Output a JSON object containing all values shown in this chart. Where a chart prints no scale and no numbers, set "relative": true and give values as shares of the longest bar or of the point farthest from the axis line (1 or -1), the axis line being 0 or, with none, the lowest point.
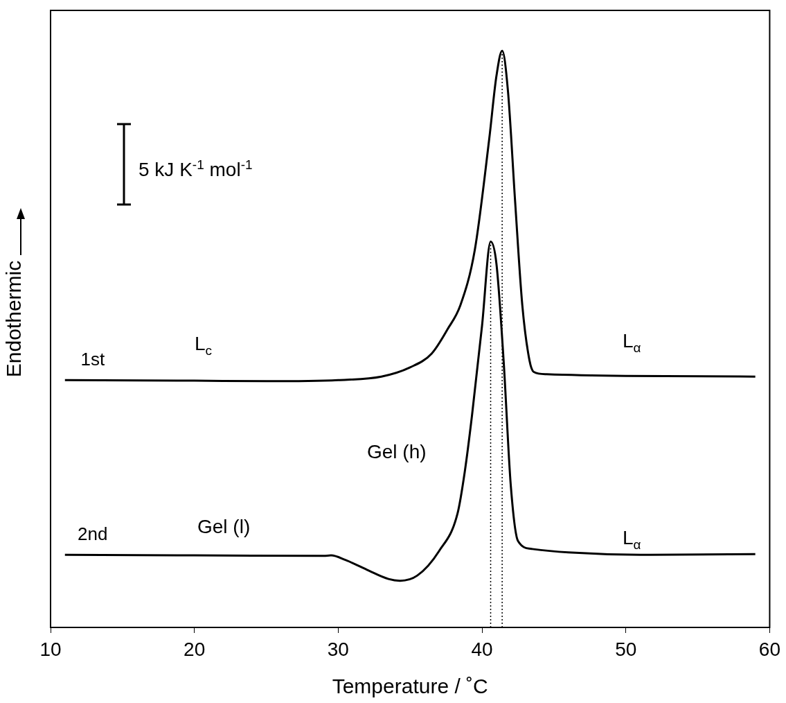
{
  "chart_data": {
    "type": "line",
    "relative": true,
    "xlabel": "Temperature / ˚C",
    "ylabel": "Endothermic",
    "xlim": [
      10,
      60
    ],
    "xticks": [
      10,
      20,
      30,
      40,
      50,
      60
    ],
    "grid": false,
    "legend": false,
    "marker": "none",
    "line_style": "solid",
    "series": [
      {
        "name": "1st",
        "color": "#000000",
        "x": [
          11,
          20,
          25,
          30,
          33,
          35,
          36.5,
          37.6,
          38.5,
          39.5,
          40.5,
          41.0,
          41.4,
          41.8,
          42.3,
          42.8,
          43.3,
          43.6,
          44.5,
          50,
          59
        ],
        "values": [
          0.429,
          0.428,
          0.427,
          0.429,
          0.435,
          0.451,
          0.475,
          0.517,
          0.559,
          0.655,
          0.847,
          0.956,
          1,
          0.931,
          0.739,
          0.559,
          0.463,
          0.443,
          0.439,
          0.436,
          0.435
        ]
      },
      {
        "name": "2nd",
        "color": "#000000",
        "x": [
          11,
          20,
          29,
          29.5,
          30.5,
          32,
          33.5,
          34.3,
          35.5,
          37,
          38.3,
          38.8,
          39.3,
          40.0,
          40.6,
          41.0,
          41.5,
          42.0,
          42.5,
          43.5,
          46,
          51,
          59
        ],
        "values": [
          0.126,
          0.125,
          0.124,
          0.125,
          0.117,
          0.1,
          0.084,
          0.081,
          0.09,
          0.132,
          0.198,
          0.27,
          0.367,
          0.523,
          0.669,
          0.631,
          0.463,
          0.246,
          0.15,
          0.136,
          0.13,
          0.126,
          0.127
        ]
      }
    ],
    "ref_lines": [
      {
        "axis": "x",
        "value": 40.6,
        "line_style": "dotted",
        "color": "#000000"
      },
      {
        "axis": "x",
        "value": 41.4,
        "line_style": "dotted",
        "color": "#000000"
      }
    ],
    "annotations": [
      "5 kJ K$^{-1}$ mol$^{-1}$",
      "L$_{c}$",
      "L$_{α}$",
      "Gel (l)",
      "Gel (h)",
      "L$_{α}$"
    ]
  }
}
